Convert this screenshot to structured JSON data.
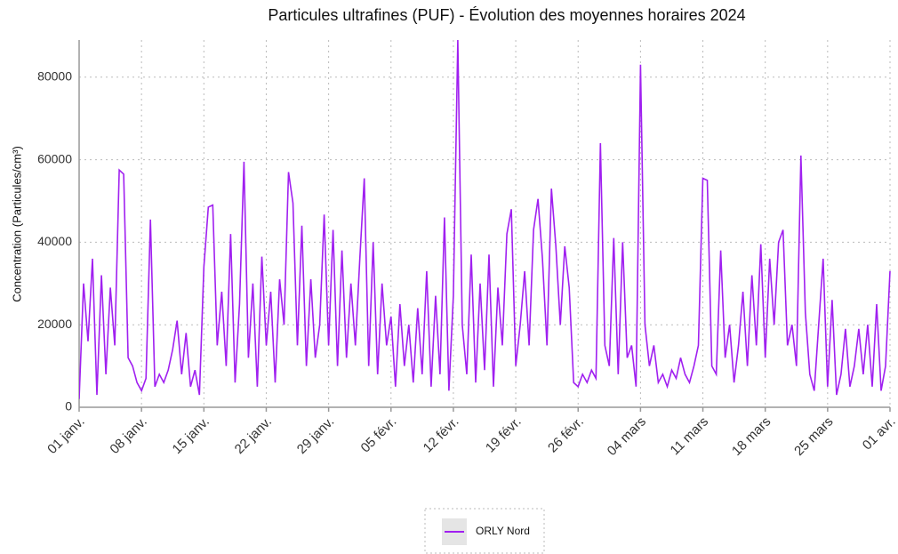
{
  "chart_data": {
    "type": "line",
    "title": "Particules ultrafines (PUF)  - Évolution des moyennes horaires 2024",
    "ylabel": "Concentration (Particules/cm³)",
    "x": [
      0,
      0.5,
      1,
      1.5,
      2,
      2.5,
      3,
      3.5,
      4,
      4.5,
      5,
      5.5,
      6,
      6.5,
      7,
      7.5,
      8,
      8.5,
      9,
      9.5,
      10,
      10.5,
      11,
      11.5,
      12,
      12.5,
      13,
      13.5,
      14,
      14.5,
      15,
      15.5,
      16,
      16.5,
      17,
      17.5,
      18,
      18.5,
      19,
      19.5,
      20,
      20.5,
      21,
      21.5,
      22,
      22.5,
      23,
      23.5,
      24,
      24.5,
      25,
      25.5,
      26,
      26.5,
      27,
      27.5,
      28,
      28.5,
      29,
      29.5,
      30,
      30.5,
      31,
      31.5,
      32,
      32.5,
      33,
      33.5,
      34,
      34.5,
      35,
      35.5,
      36,
      36.5,
      37,
      37.5,
      38,
      38.5,
      39,
      39.5,
      40,
      40.5,
      41,
      41.5,
      42,
      42.5,
      43,
      43.5,
      44,
      44.5,
      45,
      45.5,
      46,
      46.5,
      47,
      47.5,
      48,
      48.5,
      49,
      49.5,
      50,
      50.5,
      51,
      51.5,
      52,
      52.5,
      53,
      53.5,
      54,
      54.5,
      55,
      55.5,
      56,
      56.5,
      57,
      57.5,
      58,
      58.5,
      59,
      59.5,
      60,
      60.5,
      61,
      61.5,
      62,
      62.5,
      63,
      63.5,
      64,
      64.5,
      65,
      65.5,
      66,
      66.5,
      67,
      67.5,
      68,
      68.5,
      69,
      69.5,
      70,
      70.5,
      71,
      71.5,
      72,
      72.5,
      73,
      73.5,
      74,
      74.5,
      75,
      75.5,
      76,
      76.5,
      77,
      77.5,
      78,
      78.5,
      79,
      79.5,
      80,
      80.5,
      81,
      81.5,
      82,
      82.5,
      83,
      83.5,
      84,
      84.5,
      85,
      85.5,
      86,
      86.5,
      87,
      87.5,
      88,
      88.5,
      89,
      89.5,
      90,
      90.5,
      91
    ],
    "series": [
      {
        "name": "ORLY Nord",
        "color": "#a020f0",
        "values": [
          2000,
          30000,
          16000,
          36000,
          3000,
          32000,
          8000,
          29000,
          15000,
          57500,
          56500,
          12000,
          10000,
          6000,
          4000,
          7000,
          45500,
          5000,
          8000,
          6000,
          9000,
          14000,
          21000,
          8000,
          18000,
          5000,
          9000,
          3000,
          34000,
          48500,
          49000,
          15000,
          28000,
          10000,
          42000,
          6000,
          25000,
          59500,
          12000,
          30000,
          5000,
          36500,
          15000,
          28000,
          6000,
          31000,
          20000,
          57000,
          49500,
          15000,
          44000,
          10000,
          31000,
          12000,
          20000,
          46700,
          15000,
          43000,
          10000,
          38000,
          12000,
          30000,
          15000,
          36000,
          55500,
          10000,
          40000,
          8000,
          30000,
          15000,
          22000,
          5000,
          25000,
          10000,
          20000,
          6000,
          24000,
          8000,
          33000,
          5000,
          27000,
          8000,
          46000,
          4000,
          27000,
          89000,
          20000,
          8000,
          37000,
          6000,
          30000,
          9000,
          37000,
          5000,
          29000,
          15000,
          42000,
          48000,
          10000,
          20000,
          33000,
          15000,
          43000,
          50500,
          36000,
          15000,
          53000,
          39000,
          20000,
          39000,
          29000,
          6000,
          5000,
          8000,
          6000,
          9000,
          7000,
          64000,
          15000,
          10000,
          41000,
          8000,
          40000,
          12000,
          15000,
          5000,
          83000,
          20000,
          10000,
          15000,
          6000,
          8000,
          5000,
          9000,
          7000,
          12000,
          8000,
          6000,
          10000,
          15000,
          55500,
          55000,
          10000,
          8000,
          38000,
          12000,
          20000,
          6000,
          15000,
          28000,
          10000,
          32000,
          15000,
          39500,
          12000,
          36000,
          20000,
          40000,
          43000,
          15000,
          20000,
          10000,
          61000,
          23000,
          8000,
          4000,
          20000,
          36000,
          5000,
          26000,
          3000,
          8000,
          19000,
          5000,
          10000,
          19000,
          8000,
          20000,
          5000,
          25000,
          4000,
          10000,
          33000
        ]
      }
    ],
    "xlim": [
      0,
      91
    ],
    "xticks": [
      {
        "value": 0,
        "label": "01 janv."
      },
      {
        "value": 7,
        "label": "08 janv."
      },
      {
        "value": 14,
        "label": "15 janv."
      },
      {
        "value": 21,
        "label": "22 janv."
      },
      {
        "value": 28,
        "label": "29 janv."
      },
      {
        "value": 35,
        "label": "05 févr."
      },
      {
        "value": 42,
        "label": "12 févr."
      },
      {
        "value": 49,
        "label": "19 févr."
      },
      {
        "value": 56,
        "label": "26 févr."
      },
      {
        "value": 63,
        "label": "04 mars"
      },
      {
        "value": 70,
        "label": "11 mars"
      },
      {
        "value": 77,
        "label": "18 mars"
      },
      {
        "value": 84,
        "label": "25 mars"
      },
      {
        "value": 91,
        "label": "01 avr."
      }
    ],
    "ylim": [
      0,
      89000
    ],
    "yticks": [
      0,
      20000,
      40000,
      60000,
      80000
    ],
    "grid": true,
    "legend": "bottom"
  }
}
